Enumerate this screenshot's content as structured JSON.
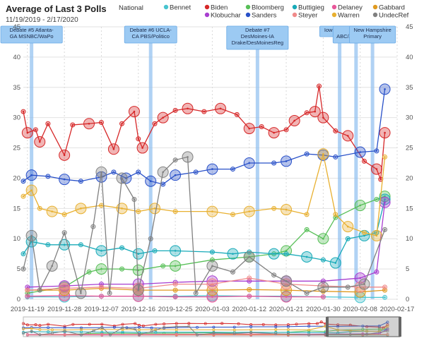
{
  "title": "Average of Last 3 Polls",
  "subtitle": "11/19/2019 - 2/17/2020",
  "chart_data": {
    "type": "line",
    "x_type": "date",
    "x_range": [
      "2019-11-18",
      "2020-02-17"
    ],
    "x_ticks": [
      "2019-11-19",
      "2019-11-28",
      "2019-12-07",
      "2019-12-16",
      "2019-12-25",
      "2020-01-03",
      "2020-01-12",
      "2020-01-21",
      "2020-01-30",
      "2020-02-08",
      "2020-02-17"
    ],
    "ylim": [
      0,
      45
    ],
    "y_ticks": [
      0,
      5,
      10,
      15,
      20,
      25,
      30,
      35,
      40,
      45
    ],
    "grid": true,
    "legend_position": "top",
    "legend_label": "National",
    "series": [
      {
        "name": "Bennet",
        "color": "#48c4cf",
        "points": [
          [
            "2019-11-19",
            0.4
          ],
          [
            "2019-11-28",
            0.4
          ],
          [
            "2019-12-07",
            0.5
          ],
          [
            "2019-12-16",
            0.5
          ],
          [
            "2019-12-25",
            0.5
          ],
          [
            "2020-01-03",
            0.6
          ],
          [
            "2020-01-12",
            0.5
          ],
          [
            "2020-01-21",
            0.5
          ],
          [
            "2020-01-30",
            0.4
          ],
          [
            "2020-02-08",
            0.3
          ],
          [
            "2020-02-14",
            0.3
          ]
        ]
      },
      {
        "name": "Biden",
        "color": "#d62728",
        "points": [
          [
            "2019-11-18",
            31
          ],
          [
            "2019-11-19",
            27.5
          ],
          [
            "2019-11-21",
            28
          ],
          [
            "2019-11-22",
            26
          ],
          [
            "2019-11-24",
            29
          ],
          [
            "2019-11-28",
            23.8
          ],
          [
            "2019-11-30",
            28.8
          ],
          [
            "2019-12-04",
            29
          ],
          [
            "2019-12-07",
            29.2
          ],
          [
            "2019-12-10",
            24.8
          ],
          [
            "2019-12-12",
            29
          ],
          [
            "2019-12-15",
            31
          ],
          [
            "2019-12-16",
            26.5
          ],
          [
            "2019-12-17",
            25
          ],
          [
            "2019-12-20",
            29
          ],
          [
            "2019-12-22",
            30
          ],
          [
            "2019-12-25",
            31.2
          ],
          [
            "2019-12-28",
            31.5
          ],
          [
            "2020-01-01",
            31
          ],
          [
            "2020-01-05",
            31.5
          ],
          [
            "2020-01-09",
            30.5
          ],
          [
            "2020-01-12",
            28.2
          ],
          [
            "2020-01-15",
            28.5
          ],
          [
            "2020-01-18",
            27.5
          ],
          [
            "2020-01-21",
            28
          ],
          [
            "2020-01-23",
            29.5
          ],
          [
            "2020-01-26",
            30.8
          ],
          [
            "2020-01-28",
            31
          ],
          [
            "2020-01-29",
            35.2
          ],
          [
            "2020-01-30",
            30
          ],
          [
            "2020-02-02",
            27.8
          ],
          [
            "2020-02-05",
            27
          ],
          [
            "2020-02-09",
            22.8
          ],
          [
            "2020-02-12",
            21.5
          ],
          [
            "2020-02-13",
            19.8
          ],
          [
            "2020-02-14",
            27.5
          ]
        ]
      },
      {
        "name": "Bloomberg",
        "color": "#57bf57",
        "points": [
          [
            "2019-11-19",
            1
          ],
          [
            "2019-11-28",
            2
          ],
          [
            "2019-12-04",
            4.5
          ],
          [
            "2019-12-07",
            5
          ],
          [
            "2019-12-12",
            5
          ],
          [
            "2019-12-16",
            4.8
          ],
          [
            "2019-12-22",
            5.5
          ],
          [
            "2019-12-25",
            5.5
          ],
          [
            "2020-01-03",
            6.5
          ],
          [
            "2020-01-12",
            7
          ],
          [
            "2020-01-18",
            7.5
          ],
          [
            "2020-01-21",
            8
          ],
          [
            "2020-01-26",
            11.5
          ],
          [
            "2020-01-30",
            10
          ],
          [
            "2020-02-02",
            13.5
          ],
          [
            "2020-02-08",
            15.5
          ],
          [
            "2020-02-12",
            16.5
          ],
          [
            "2020-02-14",
            17
          ]
        ]
      },
      {
        "name": "Buttigieg",
        "color": "#17aab8",
        "points": [
          [
            "2019-11-18",
            7.5
          ],
          [
            "2019-11-20",
            9.5
          ],
          [
            "2019-11-24",
            9
          ],
          [
            "2019-11-28",
            9
          ],
          [
            "2019-12-02",
            9
          ],
          [
            "2019-12-07",
            8
          ],
          [
            "2019-12-12",
            8.5
          ],
          [
            "2019-12-16",
            7.5
          ],
          [
            "2019-12-20",
            8
          ],
          [
            "2019-12-25",
            8
          ],
          [
            "2020-01-03",
            7.8
          ],
          [
            "2020-01-08",
            7.5
          ],
          [
            "2020-01-12",
            7.8
          ],
          [
            "2020-01-18",
            7.5
          ],
          [
            "2020-01-21",
            7.5
          ],
          [
            "2020-01-26",
            7
          ],
          [
            "2020-01-30",
            6.5
          ],
          [
            "2020-02-02",
            6
          ],
          [
            "2020-02-05",
            10
          ],
          [
            "2020-02-09",
            10.5
          ],
          [
            "2020-02-12",
            11
          ],
          [
            "2020-02-14",
            16.5
          ]
        ]
      },
      {
        "name": "Delaney",
        "color": "#e8579a",
        "points": [
          [
            "2019-11-19",
            0.5
          ],
          [
            "2019-11-28",
            0.6
          ],
          [
            "2019-12-07",
            0.5
          ],
          [
            "2019-12-16",
            0.5
          ],
          [
            "2019-12-25",
            0.4
          ],
          [
            "2020-01-03",
            0.4
          ],
          [
            "2020-01-12",
            0.5
          ],
          [
            "2020-01-21",
            0.4
          ],
          [
            "2020-01-30",
            0.4
          ]
        ]
      },
      {
        "name": "Gabbard",
        "color": "#e09a20",
        "points": [
          [
            "2019-11-19",
            1.5
          ],
          [
            "2019-11-28",
            1.5
          ],
          [
            "2019-12-07",
            1.8
          ],
          [
            "2019-12-16",
            1.5
          ],
          [
            "2019-12-25",
            1.5
          ],
          [
            "2020-01-03",
            1.5
          ],
          [
            "2020-01-12",
            1.6
          ],
          [
            "2020-01-21",
            1.5
          ],
          [
            "2020-01-30",
            1.3
          ],
          [
            "2020-02-08",
            1.2
          ],
          [
            "2020-02-14",
            1.5
          ]
        ]
      },
      {
        "name": "Klobuchar",
        "color": "#a83ed0",
        "points": [
          [
            "2019-11-19",
            2
          ],
          [
            "2019-11-28",
            2.2
          ],
          [
            "2019-12-07",
            2.5
          ],
          [
            "2019-12-16",
            2.5
          ],
          [
            "2019-12-25",
            2.8
          ],
          [
            "2020-01-03",
            3
          ],
          [
            "2020-01-12",
            3
          ],
          [
            "2020-01-21",
            3
          ],
          [
            "2020-01-30",
            3
          ],
          [
            "2020-02-08",
            3.5
          ],
          [
            "2020-02-12",
            4.5
          ],
          [
            "2020-02-14",
            16
          ]
        ]
      },
      {
        "name": "Sanders",
        "color": "#2850c8",
        "points": [
          [
            "2019-11-18",
            19.5
          ],
          [
            "2019-11-20",
            20.5
          ],
          [
            "2019-11-24",
            20.3
          ],
          [
            "2019-11-28",
            19.8
          ],
          [
            "2019-12-02",
            19.5
          ],
          [
            "2019-12-07",
            20.2
          ],
          [
            "2019-12-10",
            21
          ],
          [
            "2019-12-13",
            20
          ],
          [
            "2019-12-16",
            21
          ],
          [
            "2019-12-19",
            19.5
          ],
          [
            "2019-12-22",
            19
          ],
          [
            "2019-12-25",
            20.5
          ],
          [
            "2019-12-30",
            21
          ],
          [
            "2020-01-03",
            21.5
          ],
          [
            "2020-01-08",
            21.5
          ],
          [
            "2020-01-12",
            22.5
          ],
          [
            "2020-01-18",
            22.5
          ],
          [
            "2020-01-21",
            22.8
          ],
          [
            "2020-01-26",
            24
          ],
          [
            "2020-01-30",
            23.8
          ],
          [
            "2020-02-02",
            23.5
          ],
          [
            "2020-02-08",
            24.3
          ],
          [
            "2020-02-12",
            24.5
          ],
          [
            "2020-02-14",
            34.7
          ]
        ]
      },
      {
        "name": "Steyer",
        "color": "#f08a8a",
        "points": [
          [
            "2019-11-19",
            1.5
          ],
          [
            "2019-11-28",
            1.8
          ],
          [
            "2019-12-07",
            2
          ],
          [
            "2019-12-16",
            1.8
          ],
          [
            "2019-12-25",
            2.5
          ],
          [
            "2020-01-03",
            2.5
          ],
          [
            "2020-01-12",
            3.5
          ],
          [
            "2020-01-21",
            2.5
          ],
          [
            "2020-01-30",
            2.2
          ],
          [
            "2020-02-08",
            2
          ],
          [
            "2020-02-14",
            2
          ]
        ]
      },
      {
        "name": "Warren",
        "color": "#e8b030",
        "points": [
          [
            "2019-11-18",
            17
          ],
          [
            "2019-11-20",
            18
          ],
          [
            "2019-11-22",
            15
          ],
          [
            "2019-11-25",
            14.5
          ],
          [
            "2019-11-28",
            14
          ],
          [
            "2019-12-02",
            15
          ],
          [
            "2019-12-07",
            15.5
          ],
          [
            "2019-12-12",
            15
          ],
          [
            "2019-12-16",
            14.5
          ],
          [
            "2019-12-20",
            15
          ],
          [
            "2019-12-25",
            14.5
          ],
          [
            "2020-01-03",
            14.5
          ],
          [
            "2020-01-08",
            14
          ],
          [
            "2020-01-12",
            14.5
          ],
          [
            "2020-01-18",
            15
          ],
          [
            "2020-01-21",
            14.8
          ],
          [
            "2020-01-26",
            14
          ],
          [
            "2020-01-30",
            24
          ],
          [
            "2020-02-02",
            14
          ],
          [
            "2020-02-05",
            12
          ],
          [
            "2020-02-09",
            11
          ],
          [
            "2020-02-12",
            10.5
          ],
          [
            "2020-02-14",
            23.5
          ]
        ]
      },
      {
        "name": "UndecRef",
        "color": "#808080",
        "points": [
          [
            "2019-11-18",
            5
          ],
          [
            "2019-11-20",
            10.5
          ],
          [
            "2019-11-22",
            1.5
          ],
          [
            "2019-11-25",
            5.5
          ],
          [
            "2019-11-28",
            11
          ],
          [
            "2019-12-02",
            1
          ],
          [
            "2019-12-05",
            12
          ],
          [
            "2019-12-07",
            21
          ],
          [
            "2019-12-09",
            1
          ],
          [
            "2019-12-12",
            20
          ],
          [
            "2019-12-15",
            16.5
          ],
          [
            "2019-12-16",
            1.5
          ],
          [
            "2019-12-19",
            10
          ],
          [
            "2019-12-22",
            21
          ],
          [
            "2019-12-25",
            23
          ],
          [
            "2019-12-28",
            23.5
          ],
          [
            "2019-12-30",
            1
          ],
          [
            "2020-01-03",
            5.5
          ],
          [
            "2020-01-08",
            4.5
          ],
          [
            "2020-01-12",
            7
          ],
          [
            "2020-01-18",
            4
          ],
          [
            "2020-01-21",
            3
          ],
          [
            "2020-01-26",
            1
          ],
          [
            "2020-01-30",
            2
          ],
          [
            "2020-02-05",
            2
          ],
          [
            "2020-02-09",
            2.5
          ],
          [
            "2020-02-14",
            11.5
          ]
        ]
      }
    ],
    "annotations": [
      {
        "date": "2019-11-20",
        "lines": [
          "Debate #5 Atlanta-",
          "GA MSNBC/WaPo"
        ]
      },
      {
        "date": "2019-12-19",
        "lines": [
          "Debate #6 UCLA-",
          "CA PBS/Politico"
        ]
      },
      {
        "date": "2020-01-14",
        "lines": [
          "Debate #7",
          "DesMoines-IA",
          "Drake/DesMoinesReg"
        ]
      },
      {
        "date": "2020-02-03",
        "lines": [
          "Iowa Caucus"
        ]
      },
      {
        "date": "2020-02-07",
        "lines": [
          "Mar",
          "ABC/AppleNews"
        ]
      },
      {
        "date": "2020-02-11",
        "lines": [
          "New Hampshire",
          "Primary"
        ]
      }
    ]
  }
}
